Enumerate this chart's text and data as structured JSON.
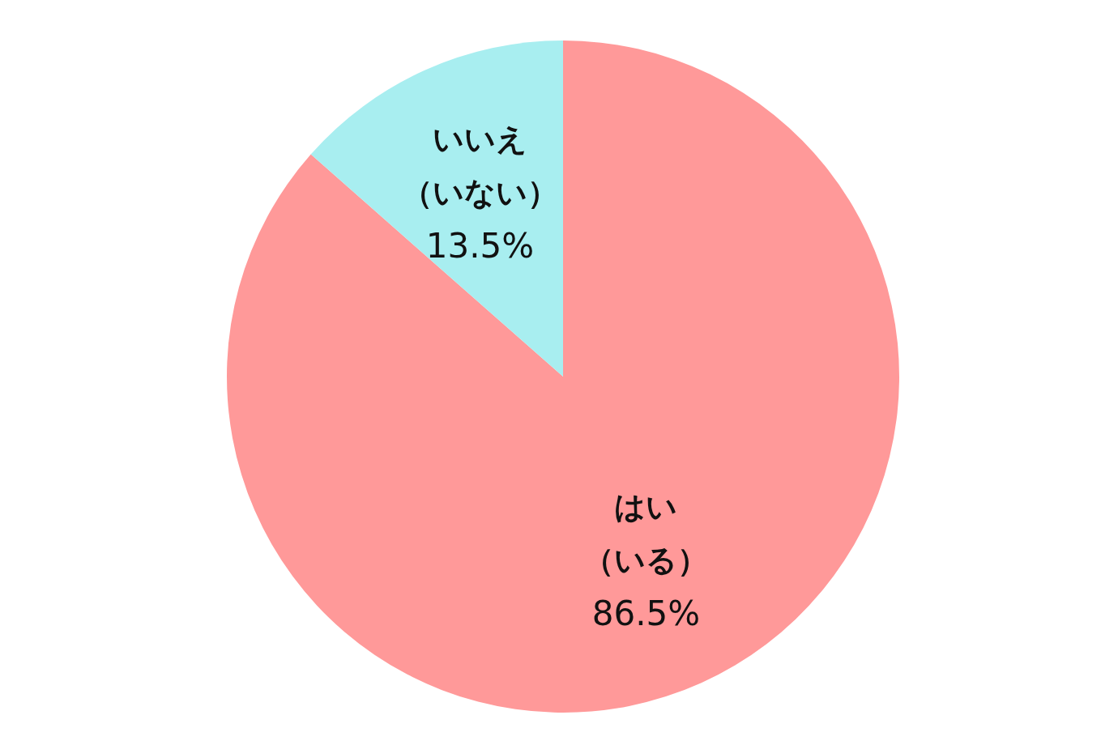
{
  "chart_data": {
    "type": "pie",
    "categories": [
      "はい（いる）",
      "いいえ（いない）"
    ],
    "values": [
      86.5,
      13.5
    ],
    "colors": [
      "#ff9999",
      "#a8eef0"
    ],
    "value_labels": [
      "86.5%",
      "13.5%"
    ],
    "legend": false
  }
}
